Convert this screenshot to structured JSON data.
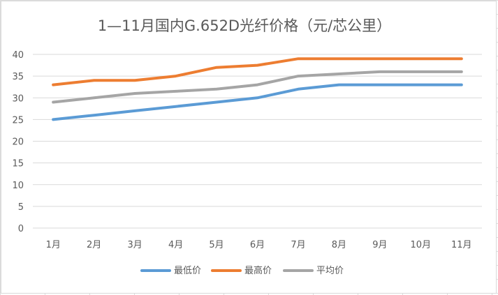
{
  "chart_data": {
    "type": "line",
    "title": "1—11月国内G.652D光纤价格（元/芯公里）",
    "categories": [
      "1月",
      "2月",
      "3月",
      "4月",
      "5月",
      "6月",
      "7月",
      "8月",
      "9月",
      "10月",
      "11月"
    ],
    "ylim": [
      0,
      40
    ],
    "yticks": [
      "0",
      "5",
      "10",
      "15",
      "20",
      "25",
      "30",
      "35",
      "40"
    ],
    "grid": true,
    "legend_position": "bottom",
    "series": [
      {
        "name": "最低价",
        "color": "#5b9bd5",
        "values": [
          25,
          26,
          27,
          28,
          29,
          30,
          32,
          33,
          33,
          33,
          33
        ]
      },
      {
        "name": "最高价",
        "color": "#ed7d31",
        "values": [
          33,
          34,
          34,
          35,
          37,
          37.5,
          39,
          39,
          39,
          39,
          39
        ]
      },
      {
        "name": "平均价",
        "color": "#a5a5a5",
        "values": [
          29,
          30,
          31,
          31.5,
          32,
          33,
          35,
          35.5,
          36,
          36,
          36
        ]
      }
    ]
  }
}
